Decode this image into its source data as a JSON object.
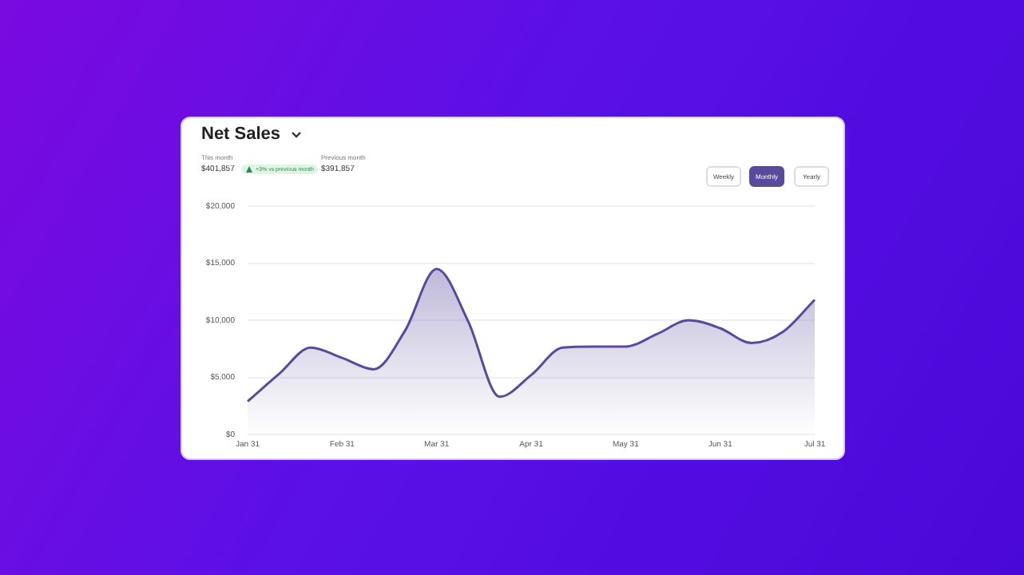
{
  "chart_data": {
    "type": "area",
    "title": "Net Sales",
    "annotations": [
      "This month",
      "$401,857",
      "+3% vs previous month",
      "Previous month",
      "$391,857",
      "Weekly",
      "Monthly",
      "Yearly"
    ],
    "categories": [
      "Jan 31",
      null,
      null,
      "Feb 31",
      null,
      null,
      "Mar 31",
      null,
      null,
      "Apr 31",
      null,
      null,
      "May 31",
      null,
      null,
      "Jun 31",
      null,
      null,
      "Jul 31"
    ],
    "series": [
      {
        "color": "#5a4a9c",
        "values": [
          2900,
          5300,
          7600,
          6700,
          5700,
          9100,
          14500,
          9900,
          3300,
          5200,
          7600,
          7700,
          7700,
          8800,
          10000,
          9300,
          8000,
          9000,
          11800
        ]
      }
    ],
    "ylim": [
      0,
      20000
    ],
    "yticks": [
      {
        "value": 0,
        "label": "$0"
      },
      {
        "value": 5000,
        "label": "$5,000"
      },
      {
        "value": 10000,
        "label": "$10,000"
      },
      {
        "value": 15000,
        "label": "$15,000"
      },
      {
        "value": 20000,
        "label": "$20,000"
      }
    ],
    "grid": "y",
    "legend": false,
    "marker": "none",
    "line_style": "solid"
  }
}
